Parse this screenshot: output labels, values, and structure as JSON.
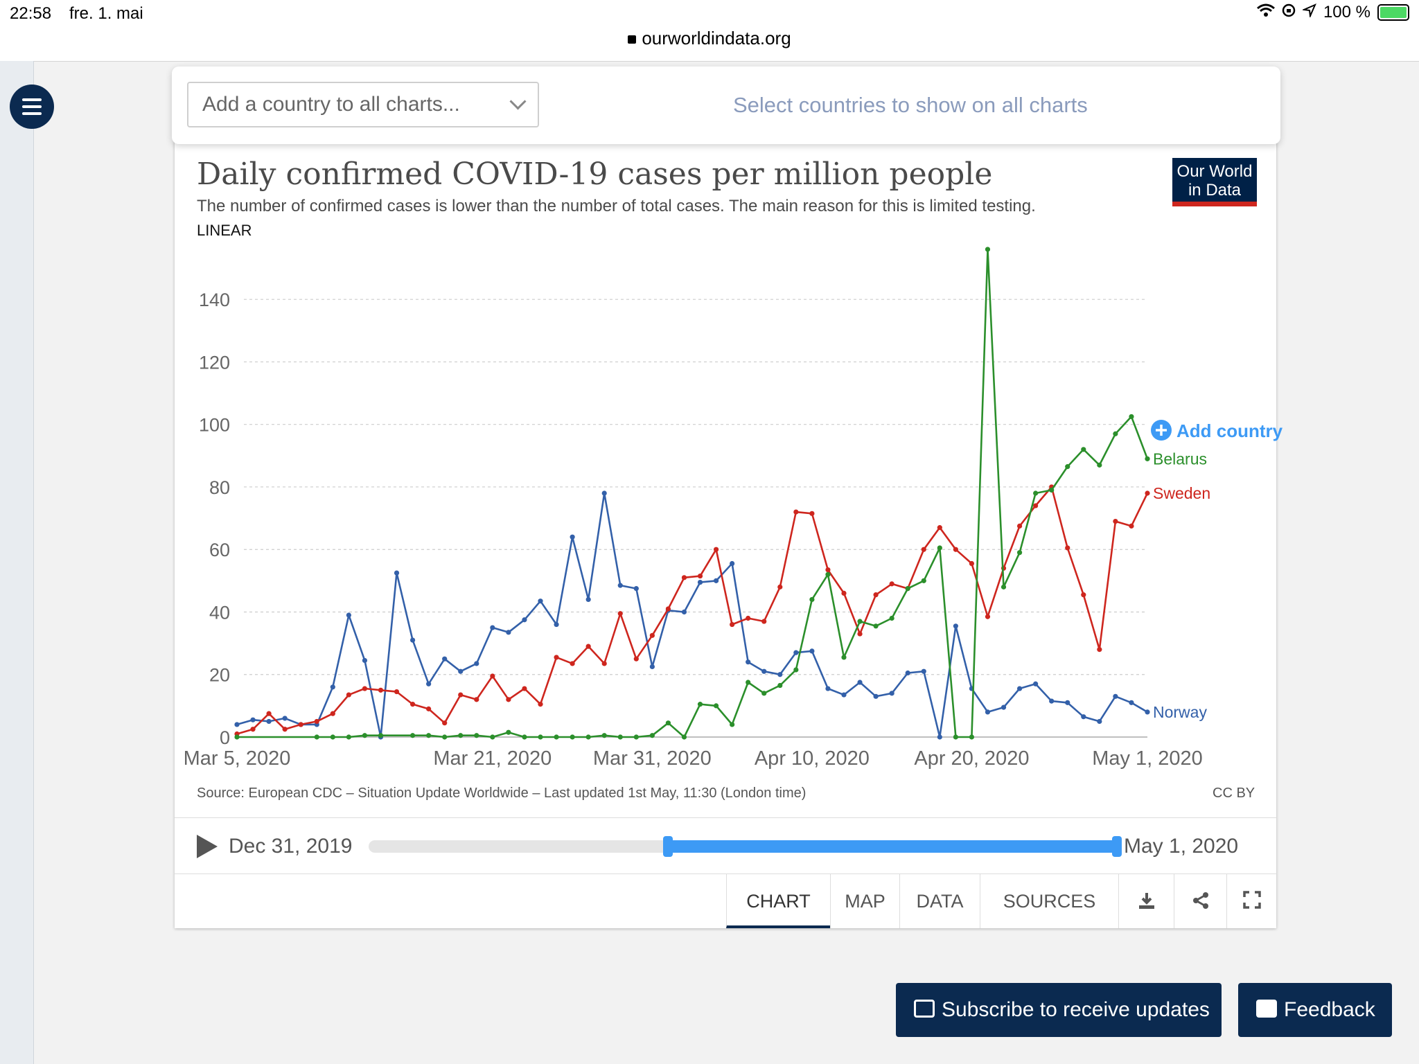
{
  "status_bar": {
    "time": "22:58",
    "date": "fre. 1. mai",
    "url": "ourworldindata.org",
    "battery": "100 %"
  },
  "country_picker": {
    "placeholder": "Add a country to all charts...",
    "hint": "Select countries to show on all charts"
  },
  "logo": {
    "line1": "Our World",
    "line2": "in Data"
  },
  "add_country": "Add country",
  "source": "Source: European CDC – Situation Update Worldwide – Last updated 1st May, 11:30 (London time)",
  "license": "CC BY",
  "timeline": {
    "start": "Dec 31, 2019",
    "end": "May 1, 2020",
    "selected_start_fraction": 0.4,
    "selected_end_fraction": 1.0
  },
  "tabs": [
    "CHART",
    "MAP",
    "DATA",
    "SOURCES"
  ],
  "tab_icons": [
    "download-icon",
    "share-icon",
    "fullscreen-icon"
  ],
  "active_tab": "CHART",
  "buttons": {
    "subscribe": "Subscribe to receive updates",
    "feedback": "Feedback"
  },
  "colors": {
    "norway": "#3360a9",
    "sweden": "#ce261e",
    "belarus": "#2b8f2b",
    "accent": "#3d9af5",
    "brand": "#002147"
  },
  "chart_data": {
    "type": "line",
    "title": "Daily confirmed COVID-19 cases per million people",
    "subtitle": "The number of confirmed cases is lower than the number of total cases. The main reason for this is limited testing.",
    "scale": "LINEAR",
    "x_start": "2020-03-05",
    "x_end": "2020-05-01",
    "x_ticks": [
      "Mar 5, 2020",
      "Mar 21, 2020",
      "Mar 31, 2020",
      "Apr 10, 2020",
      "Apr 20, 2020",
      "May 1, 2020"
    ],
    "x_tick_dates": [
      "2020-03-05",
      "2020-03-21",
      "2020-03-31",
      "2020-04-10",
      "2020-04-20",
      "2020-05-01"
    ],
    "ylim": [
      0,
      150
    ],
    "y_ticks": [
      0,
      20,
      40,
      60,
      80,
      100,
      120,
      140
    ],
    "grid": "horizontal dashed",
    "legend": "line-end labels, right",
    "series": [
      {
        "name": "Norway",
        "color_key": "norway",
        "values": [
          {
            "date": "2020-03-05",
            "value": 4
          },
          {
            "date": "2020-03-06",
            "value": 5.5
          },
          {
            "date": "2020-03-07",
            "value": 5
          },
          {
            "date": "2020-03-08",
            "value": 6
          },
          {
            "date": "2020-03-09",
            "value": 4
          },
          {
            "date": "2020-03-10",
            "value": 4
          },
          {
            "date": "2020-03-11",
            "value": 16
          },
          {
            "date": "2020-03-12",
            "value": 39
          },
          {
            "date": "2020-03-13",
            "value": 24.5
          },
          {
            "date": "2020-03-14",
            "value": 0
          },
          {
            "date": "2020-03-15",
            "value": 52.5
          },
          {
            "date": "2020-03-16",
            "value": 31
          },
          {
            "date": "2020-03-17",
            "value": 17
          },
          {
            "date": "2020-03-18",
            "value": 25
          },
          {
            "date": "2020-03-19",
            "value": 21
          },
          {
            "date": "2020-03-20",
            "value": 23.5
          },
          {
            "date": "2020-03-21",
            "value": 35
          },
          {
            "date": "2020-03-22",
            "value": 33.5
          },
          {
            "date": "2020-03-23",
            "value": 37.5
          },
          {
            "date": "2020-03-24",
            "value": 43.5
          },
          {
            "date": "2020-03-25",
            "value": 36
          },
          {
            "date": "2020-03-26",
            "value": 64
          },
          {
            "date": "2020-03-27",
            "value": 44
          },
          {
            "date": "2020-03-28",
            "value": 78
          },
          {
            "date": "2020-03-29",
            "value": 48.5
          },
          {
            "date": "2020-03-30",
            "value": 47.5
          },
          {
            "date": "2020-03-31",
            "value": 22.5
          },
          {
            "date": "2020-04-01",
            "value": 40.5
          },
          {
            "date": "2020-04-02",
            "value": 40
          },
          {
            "date": "2020-04-03",
            "value": 49.5
          },
          {
            "date": "2020-04-04",
            "value": 50
          },
          {
            "date": "2020-04-05",
            "value": 55.5
          },
          {
            "date": "2020-04-06",
            "value": 24
          },
          {
            "date": "2020-04-07",
            "value": 21
          },
          {
            "date": "2020-04-08",
            "value": 20
          },
          {
            "date": "2020-04-09",
            "value": 27
          },
          {
            "date": "2020-04-10",
            "value": 27.5
          },
          {
            "date": "2020-04-11",
            "value": 15.5
          },
          {
            "date": "2020-04-12",
            "value": 13.5
          },
          {
            "date": "2020-04-13",
            "value": 17.5
          },
          {
            "date": "2020-04-14",
            "value": 13
          },
          {
            "date": "2020-04-15",
            "value": 14
          },
          {
            "date": "2020-04-16",
            "value": 20.5
          },
          {
            "date": "2020-04-17",
            "value": 21
          },
          {
            "date": "2020-04-18",
            "value": 0
          },
          {
            "date": "2020-04-19",
            "value": 35.5
          },
          {
            "date": "2020-04-20",
            "value": 15.5
          },
          {
            "date": "2020-04-21",
            "value": 8
          },
          {
            "date": "2020-04-22",
            "value": 9.5
          },
          {
            "date": "2020-04-23",
            "value": 15.5
          },
          {
            "date": "2020-04-24",
            "value": 17
          },
          {
            "date": "2020-04-25",
            "value": 11.5
          },
          {
            "date": "2020-04-26",
            "value": 11
          },
          {
            "date": "2020-04-27",
            "value": 6.5
          },
          {
            "date": "2020-04-28",
            "value": 5
          },
          {
            "date": "2020-04-29",
            "value": 13
          },
          {
            "date": "2020-04-30",
            "value": 11
          },
          {
            "date": "2020-05-01",
            "value": 8
          }
        ]
      },
      {
        "name": "Sweden",
        "color_key": "sweden",
        "values": [
          {
            "date": "2020-03-05",
            "value": 1
          },
          {
            "date": "2020-03-06",
            "value": 2.5
          },
          {
            "date": "2020-03-07",
            "value": 7.5
          },
          {
            "date": "2020-03-08",
            "value": 2.5
          },
          {
            "date": "2020-03-09",
            "value": 4
          },
          {
            "date": "2020-03-10",
            "value": 5
          },
          {
            "date": "2020-03-11",
            "value": 7.5
          },
          {
            "date": "2020-03-12",
            "value": 13.5
          },
          {
            "date": "2020-03-13",
            "value": 15.5
          },
          {
            "date": "2020-03-14",
            "value": 15
          },
          {
            "date": "2020-03-15",
            "value": 14.5
          },
          {
            "date": "2020-03-16",
            "value": 10.5
          },
          {
            "date": "2020-03-17",
            "value": 9
          },
          {
            "date": "2020-03-18",
            "value": 4.5
          },
          {
            "date": "2020-03-19",
            "value": 13.5
          },
          {
            "date": "2020-03-20",
            "value": 12
          },
          {
            "date": "2020-03-21",
            "value": 19.5
          },
          {
            "date": "2020-03-22",
            "value": 12
          },
          {
            "date": "2020-03-23",
            "value": 15.5
          },
          {
            "date": "2020-03-24",
            "value": 10.5
          },
          {
            "date": "2020-03-25",
            "value": 25.5
          },
          {
            "date": "2020-03-26",
            "value": 23.5
          },
          {
            "date": "2020-03-27",
            "value": 29
          },
          {
            "date": "2020-03-28",
            "value": 23.5
          },
          {
            "date": "2020-03-29",
            "value": 39.5
          },
          {
            "date": "2020-03-30",
            "value": 25
          },
          {
            "date": "2020-03-31",
            "value": 32.5
          },
          {
            "date": "2020-04-01",
            "value": 41
          },
          {
            "date": "2020-04-02",
            "value": 51
          },
          {
            "date": "2020-04-03",
            "value": 51.5
          },
          {
            "date": "2020-04-04",
            "value": 60
          },
          {
            "date": "2020-04-05",
            "value": 36
          },
          {
            "date": "2020-04-06",
            "value": 38
          },
          {
            "date": "2020-04-07",
            "value": 37
          },
          {
            "date": "2020-04-08",
            "value": 48
          },
          {
            "date": "2020-04-09",
            "value": 72
          },
          {
            "date": "2020-04-10",
            "value": 71.5
          },
          {
            "date": "2020-04-11",
            "value": 53.5
          },
          {
            "date": "2020-04-12",
            "value": 46
          },
          {
            "date": "2020-04-13",
            "value": 33
          },
          {
            "date": "2020-04-14",
            "value": 45.5
          },
          {
            "date": "2020-04-15",
            "value": 49
          },
          {
            "date": "2020-04-16",
            "value": 47.5
          },
          {
            "date": "2020-04-17",
            "value": 60
          },
          {
            "date": "2020-04-18",
            "value": 67
          },
          {
            "date": "2020-04-19",
            "value": 60
          },
          {
            "date": "2020-04-20",
            "value": 55.5
          },
          {
            "date": "2020-04-21",
            "value": 38.5
          },
          {
            "date": "2020-04-22",
            "value": 54
          },
          {
            "date": "2020-04-23",
            "value": 67.5
          },
          {
            "date": "2020-04-24",
            "value": 74
          },
          {
            "date": "2020-04-25",
            "value": 80
          },
          {
            "date": "2020-04-26",
            "value": 60.5
          },
          {
            "date": "2020-04-27",
            "value": 45.5
          },
          {
            "date": "2020-04-28",
            "value": 28
          },
          {
            "date": "2020-04-29",
            "value": 69
          },
          {
            "date": "2020-04-30",
            "value": 67.5
          },
          {
            "date": "2020-05-01",
            "value": 78
          }
        ]
      },
      {
        "name": "Belarus",
        "color_key": "belarus",
        "values": [
          {
            "date": "2020-03-05",
            "value": 0
          },
          {
            "date": "2020-03-10",
            "value": 0
          },
          {
            "date": "2020-03-11",
            "value": 0
          },
          {
            "date": "2020-03-12",
            "value": 0
          },
          {
            "date": "2020-03-13",
            "value": 0.5
          },
          {
            "date": "2020-03-14",
            "value": 0.5
          },
          {
            "date": "2020-03-16",
            "value": 0.5
          },
          {
            "date": "2020-03-17",
            "value": 0.5
          },
          {
            "date": "2020-03-18",
            "value": 0
          },
          {
            "date": "2020-03-19",
            "value": 0.5
          },
          {
            "date": "2020-03-20",
            "value": 0.5
          },
          {
            "date": "2020-03-21",
            "value": 0
          },
          {
            "date": "2020-03-22",
            "value": 1.5
          },
          {
            "date": "2020-03-23",
            "value": 0
          },
          {
            "date": "2020-03-24",
            "value": 0
          },
          {
            "date": "2020-03-25",
            "value": 0
          },
          {
            "date": "2020-03-26",
            "value": 0
          },
          {
            "date": "2020-03-27",
            "value": 0
          },
          {
            "date": "2020-03-28",
            "value": 0.5
          },
          {
            "date": "2020-03-29",
            "value": 0
          },
          {
            "date": "2020-03-30",
            "value": 0
          },
          {
            "date": "2020-03-31",
            "value": 0.5
          },
          {
            "date": "2020-04-01",
            "value": 4.5
          },
          {
            "date": "2020-04-02",
            "value": 0
          },
          {
            "date": "2020-04-03",
            "value": 10.5
          },
          {
            "date": "2020-04-04",
            "value": 10
          },
          {
            "date": "2020-04-05",
            "value": 4
          },
          {
            "date": "2020-04-06",
            "value": 17.5
          },
          {
            "date": "2020-04-07",
            "value": 14
          },
          {
            "date": "2020-04-08",
            "value": 16.5
          },
          {
            "date": "2020-04-09",
            "value": 21.5
          },
          {
            "date": "2020-04-10",
            "value": 44
          },
          {
            "date": "2020-04-11",
            "value": 52
          },
          {
            "date": "2020-04-12",
            "value": 25.5
          },
          {
            "date": "2020-04-13",
            "value": 37
          },
          {
            "date": "2020-04-14",
            "value": 35.5
          },
          {
            "date": "2020-04-15",
            "value": 38
          },
          {
            "date": "2020-04-16",
            "value": 47.5
          },
          {
            "date": "2020-04-17",
            "value": 50
          },
          {
            "date": "2020-04-18",
            "value": 60.5
          },
          {
            "date": "2020-04-19",
            "value": 0
          },
          {
            "date": "2020-04-20",
            "value": 0
          },
          {
            "date": "2020-04-21",
            "value": 156
          },
          {
            "date": "2020-04-22",
            "value": 48
          },
          {
            "date": "2020-04-23",
            "value": 59
          },
          {
            "date": "2020-04-24",
            "value": 78
          },
          {
            "date": "2020-04-25",
            "value": 79
          },
          {
            "date": "2020-04-26",
            "value": 86.5
          },
          {
            "date": "2020-04-27",
            "value": 92
          },
          {
            "date": "2020-04-28",
            "value": 87
          },
          {
            "date": "2020-04-29",
            "value": 97
          },
          {
            "date": "2020-04-30",
            "value": 102.5
          },
          {
            "date": "2020-05-01",
            "value": 89
          }
        ]
      }
    ]
  }
}
